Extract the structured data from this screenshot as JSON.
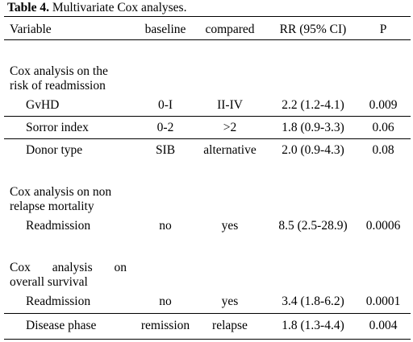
{
  "caption": {
    "bold": "Table 4.",
    "text": " Multivariate Cox analyses."
  },
  "headers": {
    "variable": "Variable",
    "baseline": "baseline",
    "compared": "compared",
    "rr": "RR (95% CI)",
    "p": "P"
  },
  "sections": [
    {
      "title_line1": "Cox analysis on the",
      "title_line2": "risk of readmission",
      "rows": [
        {
          "variable": "GvHD",
          "baseline": "0-I",
          "compared": "II-IV",
          "rr": "2.2 (1.2-4.1)",
          "p": "0.009"
        },
        {
          "variable": "Sorror index",
          "baseline": "0-2",
          "compared": ">2",
          "rr": "1.8 (0.9-3.3)",
          "p": "0.06"
        },
        {
          "variable": "Donor type",
          "baseline": "SIB",
          "compared": "alternative",
          "rr": "2.0 (0.9-4.3)",
          "p": "0.08"
        }
      ]
    },
    {
      "title_line1": "Cox analysis on non",
      "title_line2": "relapse mortality",
      "rows": [
        {
          "variable": "Readmission",
          "baseline": "no",
          "compared": "yes",
          "rr": "8.5 (2.5-28.9)",
          "p": "0.0006"
        }
      ]
    },
    {
      "title_words": [
        "Cox",
        "analysis",
        "on"
      ],
      "title_line2": "overall survival",
      "rows": [
        {
          "variable": "Readmission",
          "baseline": "no",
          "compared": "yes",
          "rr": "3.4 (1.8-6.2)",
          "p": "0.0001"
        },
        {
          "variable": "Disease phase",
          "baseline": "remission",
          "compared": "relapse",
          "rr": "1.8 (1.3-4.4)",
          "p": "0.004"
        }
      ]
    }
  ]
}
